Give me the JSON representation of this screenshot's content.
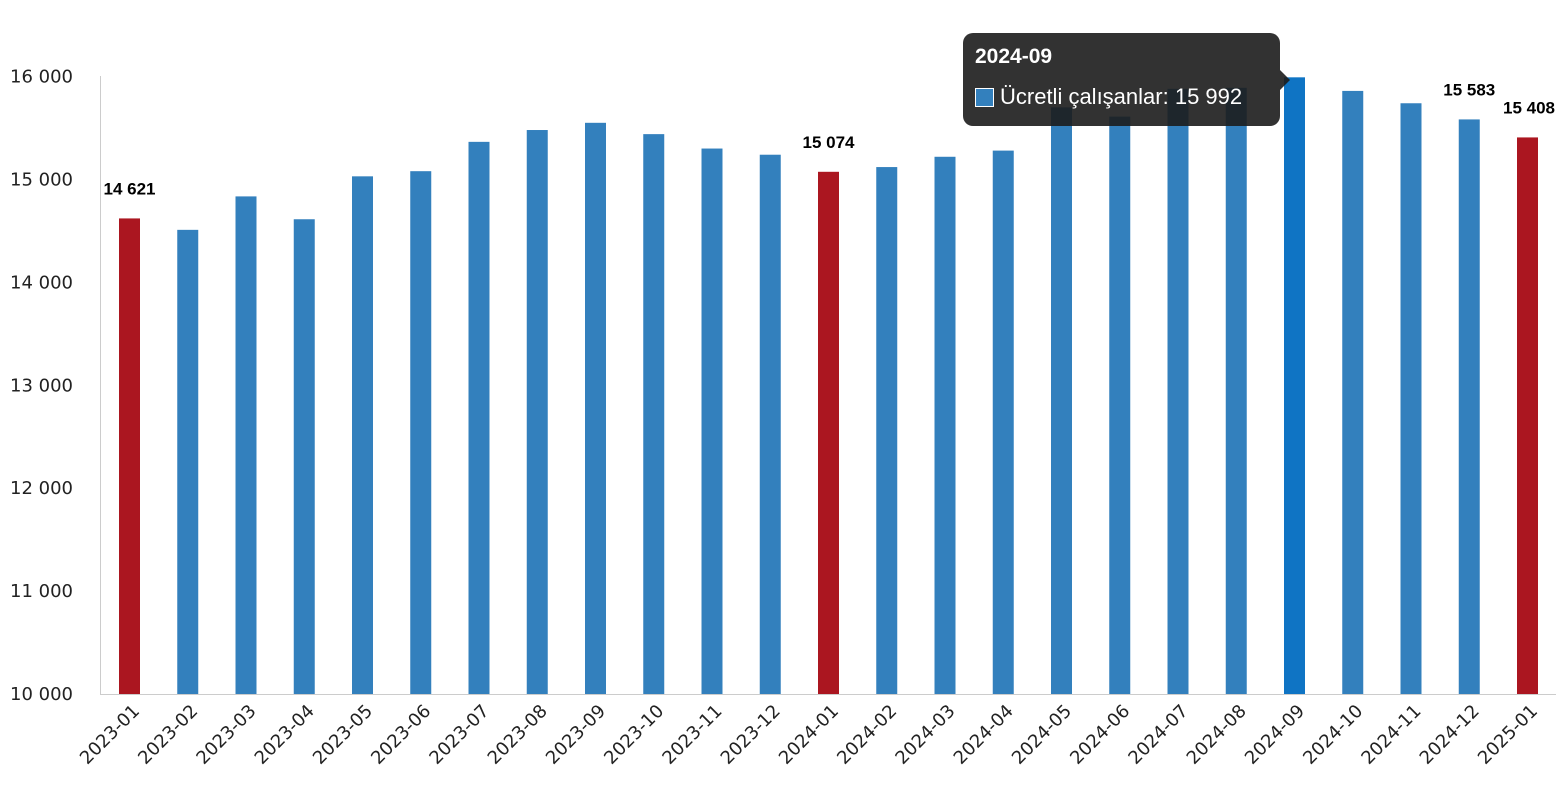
{
  "colors": {
    "bar": "#3380bd",
    "highlight": "#ab1620",
    "hover": "#0f74c4",
    "axis": "#cccccc"
  },
  "chart_data": {
    "type": "bar",
    "categories": [
      "2023-01",
      "2023-02",
      "2023-03",
      "2023-04",
      "2023-05",
      "2023-06",
      "2023-07",
      "2023-08",
      "2023-09",
      "2023-10",
      "2023-11",
      "2023-12",
      "2024-01",
      "2024-02",
      "2024-03",
      "2024-04",
      "2024-05",
      "2024-06",
      "2024-07",
      "2024-08",
      "2024-09",
      "2024-10",
      "2024-11",
      "2024-12",
      "2025-01"
    ],
    "series": [
      {
        "name": "Ücretli çalışanlar",
        "values": [
          14621,
          14510,
          14835,
          14613,
          15030,
          15080,
          15365,
          15480,
          15550,
          15440,
          15300,
          15240,
          15074,
          15120,
          15220,
          15280,
          15700,
          15610,
          15880,
          15890,
          15992,
          15860,
          15740,
          15583,
          15408
        ]
      }
    ],
    "highlighted_categories": [
      "2023-01",
      "2024-01",
      "2025-01"
    ],
    "hovered_category": "2024-09",
    "data_labels": [
      {
        "category": "2023-01",
        "text": "14 621"
      },
      {
        "category": "2024-01",
        "text": "15 074"
      },
      {
        "category": "2024-12",
        "text": "15 583"
      },
      {
        "category": "2025-01",
        "text": "15 408"
      }
    ],
    "ylim": [
      10000,
      16000
    ],
    "yticks": [
      10000,
      11000,
      12000,
      13000,
      14000,
      15000,
      16000
    ],
    "ytick_labels": [
      "10 000",
      "11 000",
      "12 000",
      "13 000",
      "14 000",
      "15 000",
      "16 000"
    ],
    "grid": false,
    "legend": "none"
  },
  "tooltip": {
    "title": "2024-09",
    "series_label": "Ücretli çalışanlar",
    "value_text": "15 992"
  }
}
